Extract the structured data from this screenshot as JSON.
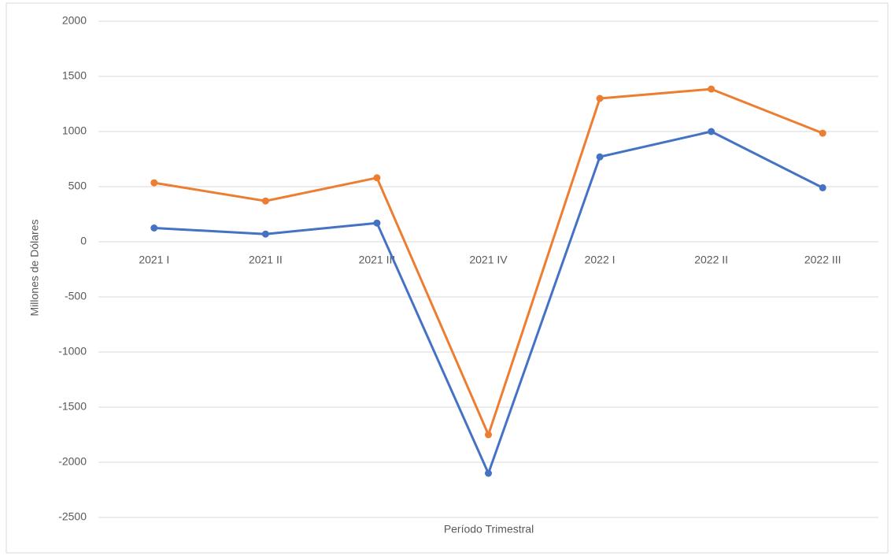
{
  "chart_data": {
    "type": "line",
    "categories": [
      "2021 I",
      "2021 II",
      "2021 III",
      "2021 IV",
      "2022 I",
      "2022 II",
      "2022 III"
    ],
    "series": [
      {
        "color": "#4472c4",
        "values": [
          125,
          70,
          170,
          -2100,
          770,
          1000,
          490
        ]
      },
      {
        "color": "#ed7d31",
        "values": [
          535,
          370,
          580,
          -1750,
          1300,
          1385,
          985
        ]
      }
    ],
    "ylim": [
      -2500,
      2000
    ],
    "yticks": [
      -2500,
      -2000,
      -1500,
      -1000,
      -500,
      0,
      500,
      1000,
      1500,
      2000
    ],
    "ylabel": "Millones de Dólares",
    "xlabel": "Período Trimestral",
    "grid": true
  }
}
